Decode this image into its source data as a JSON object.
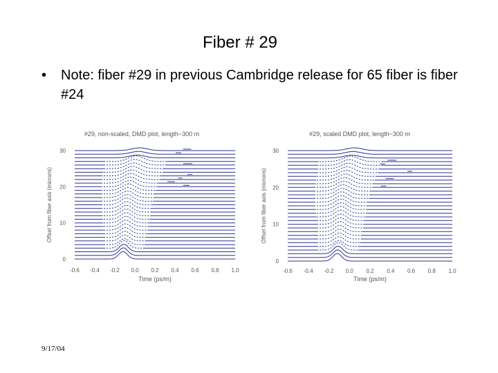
{
  "slide": {
    "title": "Fiber # 29",
    "bullet": "Note: fiber #29 in previous Cambridge release for 65 fiber is fiber #24",
    "bullet_symbol": "•",
    "footer_date": "9/17/04"
  },
  "chart_data": [
    {
      "type": "line",
      "title": "#29, non-scaled, DMD plot, length~300 m",
      "xlabel": "Time (ps/m)",
      "ylabel": "Offset from fiber axis (microns)",
      "x_ticks": [
        "-0.6",
        "-0.4",
        "-0.2",
        "0.0",
        "0.2",
        "0.4",
        "0.6",
        "0.8",
        "1.0"
      ],
      "y_ticks": [
        "0",
        "10",
        "20",
        "30"
      ],
      "xlim": [
        -0.6,
        1.0
      ],
      "ylim": [
        0,
        30
      ],
      "trace_offsets": [
        0,
        1,
        2,
        3,
        4,
        5,
        6,
        7,
        8,
        9,
        10,
        11,
        12,
        13,
        14,
        15,
        16,
        17,
        18,
        19,
        20,
        21,
        22,
        23,
        24,
        25,
        26,
        27,
        28,
        29,
        30
      ],
      "grid": false,
      "legend": "none",
      "line_color": "#2b2f8f"
    },
    {
      "type": "line",
      "title": "#29, scaled DMD plot, length~300 m",
      "xlabel": "Time (ps/m)",
      "ylabel": "Offset from fiber axis (microns)",
      "x_ticks": [
        "-0.6",
        "-0.4",
        "-0.2",
        "0.0",
        "0.2",
        "0.4",
        "0.6",
        "0.8",
        "1.0"
      ],
      "y_ticks": [
        "0",
        "10",
        "20",
        "30"
      ],
      "xlim": [
        -0.6,
        1.0
      ],
      "ylim": [
        0,
        30
      ],
      "trace_offsets": [
        0,
        1,
        2,
        3,
        4,
        5,
        6,
        7,
        8,
        9,
        10,
        11,
        12,
        13,
        14,
        15,
        16,
        17,
        18,
        19,
        20,
        21,
        22,
        23,
        24,
        25,
        26,
        27,
        28,
        29,
        30
      ],
      "grid": false,
      "legend": "none",
      "line_color": "#2b2f8f"
    }
  ]
}
